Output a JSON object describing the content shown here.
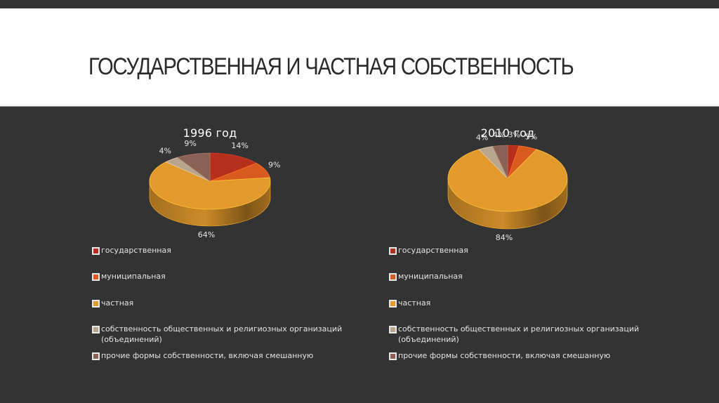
{
  "slide": {
    "title": "ГОСУДАРСТВЕННАЯ И ЧАСТНАЯ СОБСТВЕННОСТЬ"
  },
  "colors": {
    "background_dark": "#333333",
    "title_band": "#ffffff",
    "title_text": "#2a2a2a",
    "gov": "#b5301c",
    "mun": "#d95a1e",
    "private": "#e39a2c",
    "public_org": "#b7a58e",
    "other": "#8a6155"
  },
  "legend": {
    "items": [
      {
        "key": "gov",
        "label": "государственная",
        "color": "#b5301c"
      },
      {
        "key": "mun",
        "label": "муниципальная",
        "color": "#d95a1e"
      },
      {
        "key": "private",
        "label": "частная",
        "color": "#e39a2c"
      },
      {
        "key": "public_org",
        "label": "собственность общественных и религиозных организаций",
        "label_line2": "(объединений)",
        "color": "#b7a58e"
      },
      {
        "key": "other",
        "label": "прочие формы собственности, включая смешанную",
        "color": "#8a6155"
      }
    ]
  },
  "chart_data": [
    {
      "type": "pie",
      "title": "1996 год",
      "categories": [
        "государственная",
        "муниципальная",
        "частная",
        "собственность общественных и религиозных организаций (объединений)",
        "прочие формы собственности, включая смешанную"
      ],
      "values": [
        14,
        9,
        64,
        4,
        9
      ],
      "labels": [
        "14%",
        "9%",
        "64%",
        "4%",
        "9%"
      ],
      "colors": [
        "#b5301c",
        "#d95a1e",
        "#e39a2c",
        "#b7a58e",
        "#8a6155"
      ],
      "style": "3d",
      "legend_position": "bottom"
    },
    {
      "type": "pie",
      "title": "2010 год",
      "categories": [
        "государственная",
        "муниципальная",
        "частная",
        "собственность общественных и религиозных организаций (объединений)",
        "прочие формы собственности, включая смешанную"
      ],
      "values": [
        3,
        5,
        84,
        4,
        4
      ],
      "labels": [
        "3%",
        "5%",
        "84%",
        "4%",
        "4%"
      ],
      "colors": [
        "#b5301c",
        "#d95a1e",
        "#e39a2c",
        "#b7a58e",
        "#8a6155"
      ],
      "style": "3d",
      "legend_position": "bottom"
    }
  ]
}
